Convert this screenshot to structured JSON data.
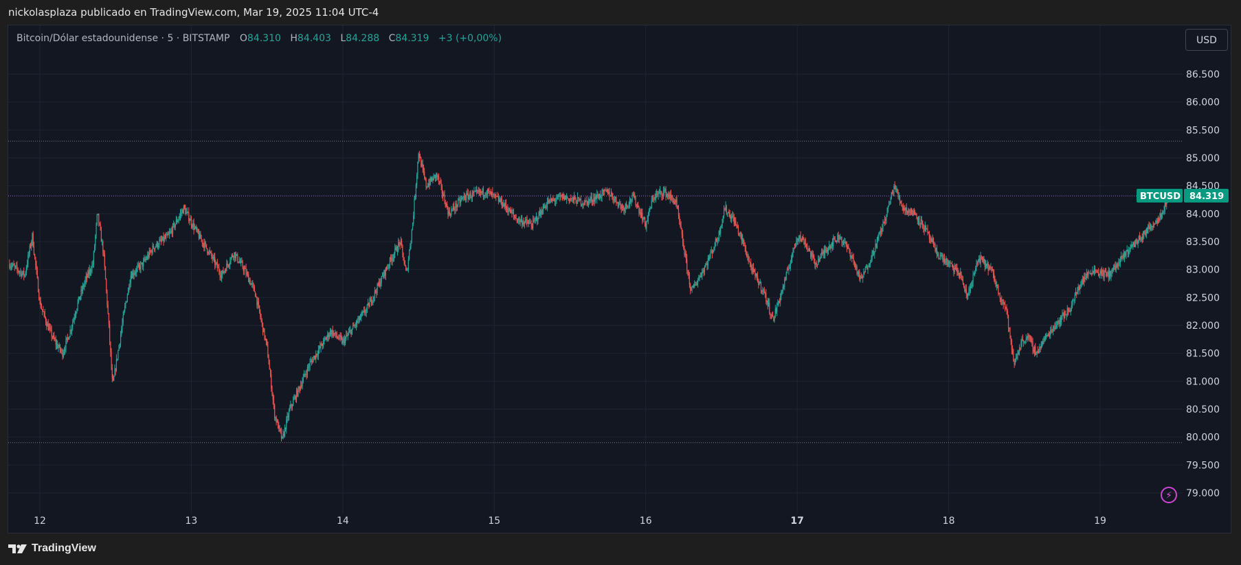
{
  "header": {
    "published_text": "nickolasplaza publicado en TradingView.com, Mar 19, 2025 11:04 UTC-4"
  },
  "legend": {
    "symbol": "Bitcoin/Dólar estadounidense · 5 · BITSTAMP",
    "o_label": "O",
    "o_value": "84.310",
    "h_label": "H",
    "h_value": "84.403",
    "l_label": "L",
    "l_value": "84.288",
    "c_label": "C",
    "c_value": "84.319",
    "change": "+3 (+0,00%)"
  },
  "currency_button": "USD",
  "price_tag": {
    "ticker": "BTCUSD",
    "value": "84.319"
  },
  "footer": {
    "brand": "TradingView"
  },
  "colors": {
    "background": "#131722",
    "grid": "#1f2433",
    "up": "#26a69a",
    "down": "#ef5350",
    "last_price_line": "#9c6ad6",
    "hline": "#7a7f8c",
    "tag_bg": "#089981",
    "bolt": "#d045d8"
  },
  "icons": {
    "brand_logo": "tradingview-logo-icon",
    "bolt": "lightning-bolt-icon"
  },
  "chart_data": {
    "type": "candlestick",
    "title": "Bitcoin/Dólar estadounidense · 5 · BITSTAMP",
    "timeframe": "5",
    "exchange": "BITSTAMP",
    "x_ticks": [
      "12",
      "13",
      "14",
      "15",
      "16",
      "17",
      "18",
      "19"
    ],
    "bold_x_ticks": [
      "17"
    ],
    "y_ticks": [
      "86.500",
      "86.000",
      "85.500",
      "85.000",
      "84.500",
      "84.000",
      "83.500",
      "83.000",
      "82.500",
      "82.000",
      "81.500",
      "81.000",
      "80.500",
      "80.000",
      "79.500",
      "79.000"
    ],
    "ylim": [
      78500,
      87000
    ],
    "grid": true,
    "horizontal_lines": [
      85300,
      79900
    ],
    "last_price": 84319,
    "series": [
      {
        "name": "BTCUSD",
        "path_day_price": [
          [
            11.8,
            83100
          ],
          [
            11.9,
            82900
          ],
          [
            11.95,
            83600
          ],
          [
            12.0,
            82400
          ],
          [
            12.05,
            82000
          ],
          [
            12.1,
            81700
          ],
          [
            12.15,
            81500
          ],
          [
            12.2,
            81900
          ],
          [
            12.25,
            82400
          ],
          [
            12.3,
            82800
          ],
          [
            12.35,
            83100
          ],
          [
            12.38,
            84000
          ],
          [
            12.42,
            83300
          ],
          [
            12.45,
            82200
          ],
          [
            12.48,
            80900
          ],
          [
            12.52,
            81600
          ],
          [
            12.56,
            82300
          ],
          [
            12.6,
            82900
          ],
          [
            12.68,
            83100
          ],
          [
            12.75,
            83400
          ],
          [
            12.85,
            83600
          ],
          [
            12.95,
            84100
          ],
          [
            13.05,
            83600
          ],
          [
            13.12,
            83300
          ],
          [
            13.2,
            82900
          ],
          [
            13.28,
            83300
          ],
          [
            13.35,
            83000
          ],
          [
            13.42,
            82600
          ],
          [
            13.5,
            81600
          ],
          [
            13.55,
            80400
          ],
          [
            13.6,
            79950
          ],
          [
            13.65,
            80500
          ],
          [
            13.7,
            80800
          ],
          [
            13.78,
            81300
          ],
          [
            13.85,
            81600
          ],
          [
            13.92,
            81900
          ],
          [
            14.0,
            81700
          ],
          [
            14.08,
            82000
          ],
          [
            14.16,
            82300
          ],
          [
            14.25,
            82800
          ],
          [
            14.32,
            83200
          ],
          [
            14.38,
            83500
          ],
          [
            14.42,
            82900
          ],
          [
            14.46,
            83800
          ],
          [
            14.5,
            85100
          ],
          [
            14.55,
            84500
          ],
          [
            14.62,
            84700
          ],
          [
            14.7,
            84000
          ],
          [
            14.8,
            84300
          ],
          [
            14.95,
            84400
          ],
          [
            15.05,
            84200
          ],
          [
            15.15,
            83900
          ],
          [
            15.25,
            83800
          ],
          [
            15.35,
            84200
          ],
          [
            15.45,
            84300
          ],
          [
            15.6,
            84200
          ],
          [
            15.75,
            84400
          ],
          [
            15.85,
            84100
          ],
          [
            15.92,
            84300
          ],
          [
            16.0,
            83800
          ],
          [
            16.05,
            84300
          ],
          [
            16.12,
            84400
          ],
          [
            16.2,
            84200
          ],
          [
            16.25,
            83400
          ],
          [
            16.3,
            82600
          ],
          [
            16.4,
            83100
          ],
          [
            16.48,
            83600
          ],
          [
            16.52,
            84100
          ],
          [
            16.58,
            83900
          ],
          [
            16.64,
            83500
          ],
          [
            16.7,
            83000
          ],
          [
            16.78,
            82600
          ],
          [
            16.84,
            82100
          ],
          [
            16.92,
            82800
          ],
          [
            17.0,
            83600
          ],
          [
            17.05,
            83500
          ],
          [
            17.12,
            83100
          ],
          [
            17.2,
            83400
          ],
          [
            17.28,
            83600
          ],
          [
            17.35,
            83300
          ],
          [
            17.42,
            82800
          ],
          [
            17.5,
            83300
          ],
          [
            17.58,
            83900
          ],
          [
            17.64,
            84500
          ],
          [
            17.7,
            84100
          ],
          [
            17.78,
            84000
          ],
          [
            17.85,
            83700
          ],
          [
            17.92,
            83300
          ],
          [
            18.0,
            83100
          ],
          [
            18.08,
            82900
          ],
          [
            18.12,
            82500
          ],
          [
            18.2,
            83200
          ],
          [
            18.28,
            83000
          ],
          [
            18.33,
            82600
          ],
          [
            18.38,
            82300
          ],
          [
            18.43,
            81300
          ],
          [
            18.48,
            81700
          ],
          [
            18.52,
            81800
          ],
          [
            18.58,
            81500
          ],
          [
            18.62,
            81700
          ],
          [
            18.7,
            82000
          ],
          [
            18.8,
            82300
          ],
          [
            18.88,
            82800
          ],
          [
            18.95,
            83000
          ],
          [
            19.05,
            82900
          ],
          [
            19.12,
            83100
          ],
          [
            19.2,
            83400
          ],
          [
            19.28,
            83600
          ],
          [
            19.34,
            83800
          ],
          [
            19.38,
            83900
          ],
          [
            19.42,
            84100
          ],
          [
            19.45,
            84319
          ]
        ]
      }
    ]
  }
}
